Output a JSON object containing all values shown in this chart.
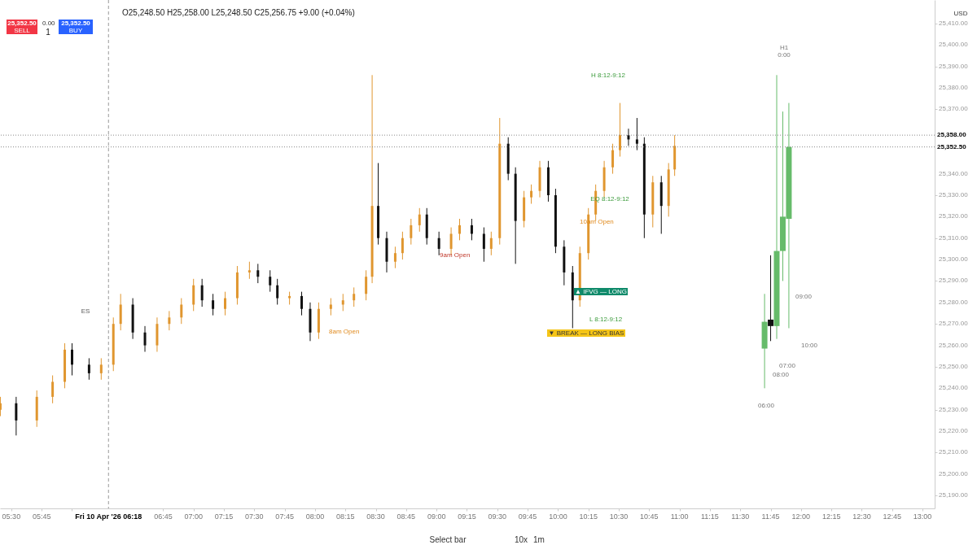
{
  "chart_data": {
    "type": "candlestick",
    "subtitle": "O25,248.50 H25,258.00 L25,248.50 C25,256.75 +9.00 (+0.04%)",
    "xlim": [
      5.407,
      13.1
    ],
    "ylim": [
      25184,
      25421
    ],
    "xticks": [
      {
        "value": 5.5,
        "label": "05:30"
      },
      {
        "value": 5.75,
        "label": "05:45"
      },
      {
        "value": 6,
        "label": null
      },
      {
        "value": 6.75,
        "label": "06:45"
      },
      {
        "value": 7,
        "label": "07:00"
      },
      {
        "value": 7.25,
        "label": "07:15"
      },
      {
        "value": 7.5,
        "label": "07:30"
      },
      {
        "value": 7.75,
        "label": "07:45"
      },
      {
        "value": 8,
        "label": "08:00"
      },
      {
        "value": 8.25,
        "label": "08:15"
      },
      {
        "value": 8.5,
        "label": "08:30"
      },
      {
        "value": 8.75,
        "label": "08:45"
      },
      {
        "value": 9,
        "label": "09:00"
      },
      {
        "value": 9.25,
        "label": "09:15"
      },
      {
        "value": 9.5,
        "label": "09:30"
      },
      {
        "value": 9.75,
        "label": "09:45"
      },
      {
        "value": 10,
        "label": "10:00"
      },
      {
        "value": 10.25,
        "label": "10:15"
      },
      {
        "value": 10.5,
        "label": "10:30"
      },
      {
        "value": 10.75,
        "label": "10:45"
      },
      {
        "value": 11,
        "label": "11:00"
      },
      {
        "value": 11.25,
        "label": "11:15"
      },
      {
        "value": 11.5,
        "label": "11:30"
      },
      {
        "value": 11.75,
        "label": "11:45"
      },
      {
        "value": 12,
        "label": "12:00"
      },
      {
        "value": 12.25,
        "label": "12:15"
      },
      {
        "value": 12.5,
        "label": "12:30"
      },
      {
        "value": 12.75,
        "label": "12:45"
      },
      {
        "value": 13,
        "label": "13:00"
      }
    ],
    "yticks": [
      {
        "value": 25190,
        "label": "25,190.00"
      },
      {
        "value": 25200,
        "label": "25,200.00"
      },
      {
        "value": 25210,
        "label": "25,210.00"
      },
      {
        "value": 25220,
        "label": "25,220.00"
      },
      {
        "value": 25230,
        "label": "25,230.00"
      },
      {
        "value": 25240,
        "label": "25,240.00"
      },
      {
        "value": 25250,
        "label": "25,250.00"
      },
      {
        "value": 25260,
        "label": "25,260.00"
      },
      {
        "value": 25270,
        "label": "25,270.00"
      },
      {
        "value": 25280,
        "label": "25,280.00"
      },
      {
        "value": 25290,
        "label": "25,290.00"
      },
      {
        "value": 25300,
        "label": "25,300.00"
      },
      {
        "value": 25310,
        "label": "25,310.00"
      },
      {
        "value": 25320,
        "label": "25,320.00"
      },
      {
        "value": 25330,
        "label": "25,330.00"
      },
      {
        "value": 25340,
        "label": "25,340.00"
      },
      {
        "value": 25370,
        "label": "25,370.00"
      },
      {
        "value": 25380,
        "label": "25,380.00"
      },
      {
        "value": 25390,
        "label": "25,390.00"
      },
      {
        "value": 25400,
        "label": "25,400.00"
      },
      {
        "value": 25410,
        "label": "25,410.00"
      }
    ],
    "grid": false,
    "series": [
      {
        "colors": [
          "#e0962f",
          "#111111",
          "#e0962f",
          "#e0962f",
          "#e0962f",
          "#111111",
          "#111111",
          "#e0962f",
          "#e0962f",
          "#e0962f",
          "#111111",
          "#111111",
          "#e0962f",
          "#e0962f",
          "#e0962f",
          "#e0962f",
          "#111111",
          "#111111",
          "#e0962f",
          "#e0962f",
          "#e0962f",
          "#111111",
          "#111111",
          "#111111",
          "#e0962f",
          "#111111",
          "#111111",
          "#e0962f",
          "#e0962f",
          "#e0962f",
          "#e0962f",
          "#e0962f",
          "#e0962f",
          "#111111",
          "#111111",
          "#e0962f",
          "#e0962f",
          "#e0962f",
          "#e0962f",
          "#111111",
          "#111111",
          "#e0962f",
          "#e0962f",
          "#111111",
          "#111111",
          "#e0962f",
          "#e0962f",
          "#111111",
          "#111111",
          "#e0962f",
          "#e0962f",
          "#e0962f",
          "#111111",
          "#111111",
          "#111111",
          "#111111",
          "#e0962f",
          "#e0962f",
          "#e0962f",
          "#e0962f",
          "#e0962f",
          "#e0962f",
          "#111111",
          "#111111",
          "#111111",
          "#e0962f",
          "#111111",
          "#e0962f",
          "#e0962f"
        ],
        "x": [
          5.41,
          5.54,
          5.71,
          5.84,
          5.94,
          6.0,
          6.14,
          6.24,
          6.34,
          6.4,
          6.5,
          6.6,
          6.7,
          6.8,
          6.9,
          7.0,
          7.07,
          7.16,
          7.26,
          7.36,
          7.46,
          7.53,
          7.63,
          7.69,
          7.79,
          7.89,
          7.96,
          8.03,
          8.13,
          8.23,
          8.32,
          8.42,
          8.47,
          8.52,
          8.59,
          8.66,
          8.72,
          8.79,
          8.86,
          8.92,
          9.02,
          9.12,
          9.19,
          9.29,
          9.39,
          9.45,
          9.52,
          9.59,
          9.65,
          9.72,
          9.78,
          9.85,
          9.92,
          9.98,
          10.05,
          10.12,
          10.18,
          10.25,
          10.31,
          10.38,
          10.45,
          10.51,
          10.58,
          10.65,
          10.71,
          10.78,
          10.85,
          10.91,
          10.96
        ],
        "ohlc": [
          [
            25230,
            25236,
            25227,
            25233
          ],
          [
            25233,
            25236,
            25218,
            25225
          ],
          [
            25225,
            25239,
            25222,
            25236
          ],
          [
            25236,
            25246,
            25233,
            25243
          ],
          [
            25243,
            25261,
            25240,
            25258
          ],
          [
            25258,
            25261,
            25246,
            25251
          ],
          [
            25251,
            25254,
            25244,
            25247
          ],
          [
            25247,
            25254,
            25244,
            25251
          ],
          [
            25251,
            25273,
            25248,
            25270
          ],
          [
            25270,
            25284,
            25267,
            25279
          ],
          [
            25279,
            25282,
            25263,
            25266
          ],
          [
            25266,
            25269,
            25257,
            25260
          ],
          [
            25260,
            25273,
            25257,
            25270
          ],
          [
            25270,
            25276,
            25267,
            25273
          ],
          [
            25273,
            25282,
            25270,
            25279
          ],
          [
            25279,
            25291,
            25276,
            25288
          ],
          [
            25288,
            25291,
            25278,
            25281
          ],
          [
            25281,
            25284,
            25274,
            25277
          ],
          [
            25277,
            25285,
            25274,
            25282
          ],
          [
            25282,
            25297,
            25279,
            25294
          ],
          [
            25294,
            25299,
            25291,
            25295
          ],
          [
            25295,
            25298,
            25289,
            25292
          ],
          [
            25292,
            25295,
            25285,
            25288
          ],
          [
            25288,
            25291,
            25279,
            25282
          ],
          [
            25282,
            25285,
            25279,
            25283
          ],
          [
            25283,
            25285,
            25274,
            25277
          ],
          [
            25277,
            25280,
            25262,
            25266
          ],
          [
            25266,
            25280,
            25263,
            25277
          ],
          [
            25277,
            25282,
            25274,
            25279
          ],
          [
            25279,
            25284,
            25276,
            25281
          ],
          [
            25281,
            25287,
            25278,
            25284
          ],
          [
            25284,
            25295,
            25281,
            25292
          ],
          [
            25292,
            25386,
            25289,
            25325
          ],
          [
            25325,
            25345,
            25307,
            25310
          ],
          [
            25310,
            25313,
            25294,
            25299
          ],
          [
            25299,
            25306,
            25296,
            25303
          ],
          [
            25303,
            25313,
            25300,
            25310
          ],
          [
            25310,
            25319,
            25307,
            25316
          ],
          [
            25316,
            25324,
            25313,
            25321
          ],
          [
            25321,
            25324,
            25307,
            25310
          ],
          [
            25310,
            25313,
            25302,
            25305
          ],
          [
            25305,
            25315,
            25302,
            25312
          ],
          [
            25312,
            25319,
            25309,
            25316
          ],
          [
            25316,
            25319,
            25309,
            25312
          ],
          [
            25312,
            25315,
            25299,
            25305
          ],
          [
            25305,
            25313,
            25302,
            25310
          ],
          [
            25310,
            25366,
            25307,
            25354
          ],
          [
            25354,
            25357,
            25337,
            25340
          ],
          [
            25340,
            25343,
            25298,
            25318
          ],
          [
            25318,
            25332,
            25315,
            25329
          ],
          [
            25329,
            25335,
            25326,
            25332
          ],
          [
            25332,
            25346,
            25329,
            25343
          ],
          [
            25343,
            25346,
            25327,
            25330
          ],
          [
            25330,
            25333,
            25303,
            25306
          ],
          [
            25306,
            25309,
            25288,
            25294
          ],
          [
            25294,
            25297,
            25268,
            25281
          ],
          [
            25281,
            25306,
            25278,
            25303
          ],
          [
            25303,
            25324,
            25300,
            25321
          ],
          [
            25321,
            25335,
            25318,
            25332
          ],
          [
            25332,
            25346,
            25329,
            25343
          ],
          [
            25343,
            25354,
            25340,
            25351
          ],
          [
            25351,
            25373,
            25348,
            25358
          ],
          [
            25358,
            25361,
            25353,
            25356
          ],
          [
            25356,
            25366,
            25351,
            25354
          ],
          [
            25354,
            25357,
            25310,
            25321
          ],
          [
            25321,
            25339,
            25315,
            25336
          ],
          [
            25336,
            25339,
            25312,
            25325
          ],
          [
            25325,
            25345,
            25320,
            25342
          ],
          [
            25342,
            25358,
            25339,
            25353
          ]
        ]
      },
      {
        "colors": [
          "#66bb6a",
          "#111111",
          "#66bb6a",
          "#66bb6a",
          "#66bb6a"
        ],
        "x": [
          11.7,
          11.75,
          11.8,
          11.85,
          11.9
        ],
        "ohlc": [
          [
            25258.5,
            25284,
            25240,
            25271
          ],
          [
            25272,
            25302,
            25262,
            25269
          ],
          [
            25269,
            25386,
            25263,
            25304
          ],
          [
            25304,
            25369,
            25290,
            25320
          ],
          [
            25319,
            25373,
            25268,
            25352.5
          ]
        ]
      }
    ],
    "ref_lines": [
      {
        "axis": "y",
        "value": 25358,
        "label": "25,358.00",
        "line_style": "dotted"
      },
      {
        "axis": "y",
        "value": 25352.5,
        "label": "25,352.50",
        "line_style": "dotted"
      },
      {
        "axis": "x",
        "value": 6.3,
        "label": "Fri 10 Apr '26  06:18",
        "line_style": "dashed"
      }
    ],
    "annotations": [
      "25,352.50",
      "SELL",
      "0.00",
      "1",
      "25,352.50",
      "BUY",
      "USD",
      "Select bar",
      "10x",
      "1m",
      "H 8:12-9:12",
      "EQ 8:12-9:12",
      "L 8:12-9:12",
      "10am Open",
      "8am Open",
      "9am Open",
      "▲ IFVG — LONG",
      "▼ BREAK — LONG BIAS",
      "ES",
      "H1",
      "0:00",
      "06:00",
      "07:00",
      "08:00",
      "09:00",
      "10:00"
    ]
  }
}
